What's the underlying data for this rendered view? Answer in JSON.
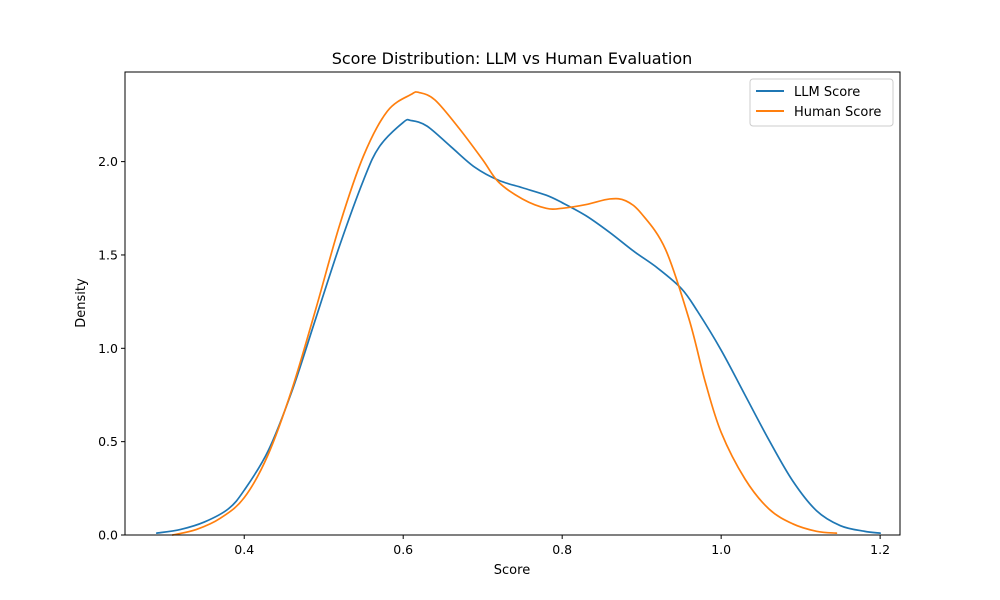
{
  "chart_data": {
    "type": "line",
    "title": "Score Distribution: LLM vs Human Evaluation",
    "xlabel": "Score",
    "ylabel": "Density",
    "xlim": [
      0.25,
      1.225
    ],
    "ylim": [
      0.0,
      2.48
    ],
    "xticks": [
      0.4,
      0.6,
      0.8,
      1.0,
      1.2
    ],
    "xtick_labels": [
      "0.4",
      "0.6",
      "0.8",
      "1.0",
      "1.2"
    ],
    "yticks": [
      0.0,
      0.5,
      1.0,
      1.5,
      2.0
    ],
    "ytick_labels": [
      "0.0",
      "0.5",
      "1.0",
      "1.5",
      "2.0"
    ],
    "grid": false,
    "legend_position": "top-right",
    "series": [
      {
        "name": "LLM Score",
        "color": "#1f77b4",
        "points": [
          [
            0.29,
            0.01
          ],
          [
            0.32,
            0.03
          ],
          [
            0.35,
            0.07
          ],
          [
            0.38,
            0.14
          ],
          [
            0.4,
            0.24
          ],
          [
            0.43,
            0.45
          ],
          [
            0.46,
            0.77
          ],
          [
            0.49,
            1.16
          ],
          [
            0.52,
            1.55
          ],
          [
            0.55,
            1.9
          ],
          [
            0.57,
            2.08
          ],
          [
            0.6,
            2.21
          ],
          [
            0.61,
            2.22
          ],
          [
            0.63,
            2.19
          ],
          [
            0.66,
            2.08
          ],
          [
            0.69,
            1.97
          ],
          [
            0.72,
            1.9
          ],
          [
            0.75,
            1.86
          ],
          [
            0.78,
            1.82
          ],
          [
            0.8,
            1.78
          ],
          [
            0.83,
            1.71
          ],
          [
            0.86,
            1.62
          ],
          [
            0.89,
            1.52
          ],
          [
            0.92,
            1.43
          ],
          [
            0.95,
            1.32
          ],
          [
            0.97,
            1.2
          ],
          [
            1.0,
            0.99
          ],
          [
            1.03,
            0.75
          ],
          [
            1.06,
            0.51
          ],
          [
            1.09,
            0.29
          ],
          [
            1.12,
            0.13
          ],
          [
            1.15,
            0.05
          ],
          [
            1.18,
            0.02
          ],
          [
            1.2,
            0.01
          ]
        ]
      },
      {
        "name": "Human Score",
        "color": "#ff7f0e",
        "points": [
          [
            0.31,
            0.0
          ],
          [
            0.34,
            0.03
          ],
          [
            0.37,
            0.09
          ],
          [
            0.4,
            0.2
          ],
          [
            0.43,
            0.43
          ],
          [
            0.46,
            0.78
          ],
          [
            0.49,
            1.21
          ],
          [
            0.52,
            1.66
          ],
          [
            0.55,
            2.03
          ],
          [
            0.58,
            2.27
          ],
          [
            0.61,
            2.36
          ],
          [
            0.62,
            2.37
          ],
          [
            0.64,
            2.33
          ],
          [
            0.67,
            2.18
          ],
          [
            0.7,
            2.01
          ],
          [
            0.72,
            1.89
          ],
          [
            0.75,
            1.8
          ],
          [
            0.78,
            1.75
          ],
          [
            0.8,
            1.75
          ],
          [
            0.83,
            1.77
          ],
          [
            0.86,
            1.8
          ],
          [
            0.88,
            1.79
          ],
          [
            0.9,
            1.72
          ],
          [
            0.93,
            1.53
          ],
          [
            0.96,
            1.15
          ],
          [
            0.98,
            0.82
          ],
          [
            1.0,
            0.55
          ],
          [
            1.03,
            0.3
          ],
          [
            1.06,
            0.14
          ],
          [
            1.09,
            0.06
          ],
          [
            1.12,
            0.02
          ],
          [
            1.145,
            0.01
          ]
        ]
      }
    ]
  }
}
